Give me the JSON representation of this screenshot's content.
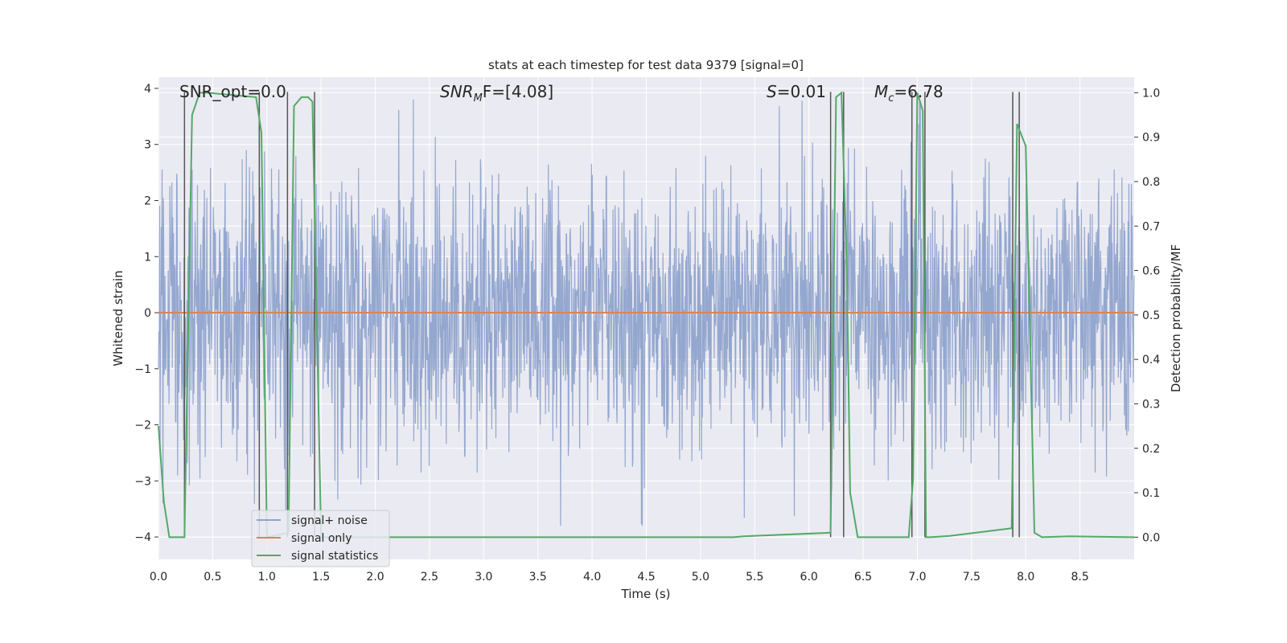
{
  "chart_data": {
    "type": "line",
    "title": "stats at each timestep for test data 9379 [signal=0]",
    "xlabel": "Time (s)",
    "ylabel": "Whitened strain",
    "y2label": "Detection probability/MF",
    "xlim": [
      0,
      9
    ],
    "ylim": [
      -4.4,
      4.2
    ],
    "y2lim": [
      -0.05,
      1.035
    ],
    "xticks": [
      0.0,
      0.5,
      1.0,
      1.5,
      2.0,
      2.5,
      3.0,
      3.5,
      4.0,
      4.5,
      5.0,
      5.5,
      6.0,
      6.5,
      7.0,
      7.5,
      8.0,
      8.5
    ],
    "xtick_labels": [
      "0.0",
      "0.5",
      "1.0",
      "1.5",
      "2.0",
      "2.5",
      "3.0",
      "3.5",
      "4.0",
      "4.5",
      "5.0",
      "5.5",
      "6.0",
      "6.5",
      "7.0",
      "7.5",
      "8.0",
      "8.5"
    ],
    "yticks": [
      -4,
      -3,
      -2,
      -1,
      0,
      1,
      2,
      3,
      4
    ],
    "ytick_labels": [
      "−4",
      "−3",
      "−2",
      "−1",
      "0",
      "1",
      "2",
      "3",
      "4"
    ],
    "y2ticks": [
      0.0,
      0.1,
      0.2,
      0.3,
      0.4,
      0.5,
      0.6,
      0.7,
      0.8,
      0.9,
      1.0
    ],
    "y2tick_labels": [
      "0.0",
      "0.1",
      "0.2",
      "0.3",
      "0.4",
      "0.5",
      "0.6",
      "0.7",
      "0.8",
      "0.9",
      "1.0"
    ],
    "annotations": {
      "snr_opt": "SNR_opt=0.0",
      "snr_mf_main": "SNR",
      "snr_mf_sub": "M",
      "snr_mf_rest": "F=[4.08]",
      "s_main": "S",
      "s_rest": "=0.01",
      "mc_main": "M",
      "mc_sub": "c",
      "mc_rest": "=6.78"
    },
    "legend": {
      "position": "lower-left",
      "items": [
        "signal+ noise",
        "signal only",
        "signal statistics"
      ]
    },
    "colors": {
      "noise": "#8fa3cc",
      "signal_only": "#dd8452",
      "statistics": "#55a868",
      "markers": "#555555",
      "background": "#eaeaf2",
      "grid": "#ffffff"
    },
    "series": [
      {
        "name": "signal+ noise",
        "note": "whitened strain, dense noise spanning roughly -3.7 to 3.8",
        "amplitude_typical": 2.0,
        "amplitude_max": 3.8
      },
      {
        "name": "signal only",
        "x": [
          0,
          9
        ],
        "y": [
          0,
          0
        ]
      },
      {
        "name": "signal statistics",
        "x": [
          0.0,
          0.05,
          0.1,
          0.24,
          0.31,
          0.38,
          0.45,
          0.9,
          0.95,
          1.0,
          1.2,
          1.25,
          1.32,
          1.38,
          1.42,
          1.5,
          1.6,
          5.3,
          5.4,
          6.2,
          6.25,
          6.3,
          6.35,
          6.38,
          6.45,
          6.92,
          6.96,
          7.0,
          7.05,
          7.08,
          7.12,
          7.3,
          7.87,
          7.92,
          8.0,
          8.08,
          8.15,
          8.4,
          9.0
        ],
        "y": [
          0.25,
          0.08,
          0.0,
          0.0,
          0.95,
          1.0,
          1.0,
          0.99,
          0.91,
          0.0,
          0.01,
          0.97,
          0.99,
          0.99,
          0.98,
          0.0,
          0.0,
          0.0,
          0.002,
          0.01,
          0.99,
          1.0,
          0.6,
          0.1,
          0.0,
          0.0,
          0.13,
          1.0,
          0.96,
          0.0,
          0.0,
          0.003,
          0.02,
          0.93,
          0.88,
          0.01,
          0.0,
          0.002,
          0.0
        ]
      }
    ],
    "vertical_markers": [
      0.24,
      0.93,
      1.19,
      1.44,
      6.2,
      6.32,
      6.95,
      7.07,
      7.88,
      7.94
    ]
  }
}
